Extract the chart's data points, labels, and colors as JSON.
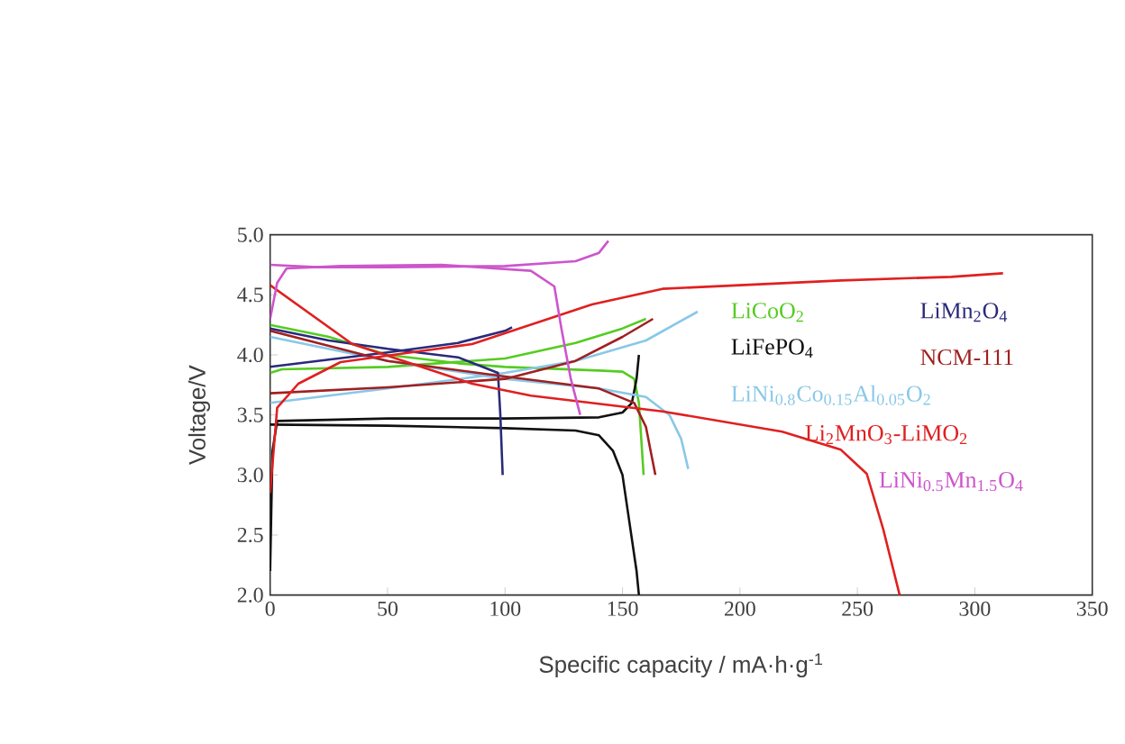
{
  "chart_data": {
    "type": "line",
    "xlabel": "Specific capacity / mA·h·g$^{-1}$",
    "ylabel": "Voltage/V",
    "xlim": [
      0,
      350
    ],
    "ylim": [
      2,
      5
    ],
    "xticks": [
      0,
      50,
      100,
      150,
      200,
      250,
      300,
      350
    ],
    "yticks": [
      {
        "value": 2,
        "label": "2.0"
      },
      {
        "value": 2.5,
        "label": "2.5"
      },
      {
        "value": 3,
        "label": "3.0"
      },
      {
        "value": 3.5,
        "label": "3.5"
      },
      {
        "value": 4,
        "label": "4.0"
      },
      {
        "value": 4.5,
        "label": "4.5"
      },
      {
        "value": 5,
        "label": "5.0"
      }
    ],
    "series": [
      {
        "name": "LiCoO$_{2}$",
        "color": "#55cc22",
        "x": [
          0,
          5,
          50,
          100,
          130,
          150,
          160
        ],
        "values": [
          3.85,
          3.88,
          3.9,
          3.97,
          4.1,
          4.22,
          4.3
        ]
      },
      {
        "color": "#55cc22",
        "x": [
          0,
          25,
          50,
          80,
          100,
          140,
          150,
          155,
          157,
          158,
          159
        ],
        "values": [
          4.25,
          4.15,
          4.0,
          3.93,
          3.9,
          3.87,
          3.86,
          3.8,
          3.6,
          3.3,
          3.0
        ]
      },
      {
        "name": "LiFePO$_{4}$",
        "color": "#111111",
        "x": [
          0,
          1,
          3,
          50,
          100,
          140,
          150,
          154,
          156,
          157
        ],
        "values": [
          2.2,
          3.2,
          3.45,
          3.47,
          3.47,
          3.48,
          3.52,
          3.6,
          3.8,
          4.0
        ]
      },
      {
        "color": "#111111",
        "x": [
          0,
          50,
          100,
          130,
          140,
          146,
          150,
          153,
          156,
          157
        ],
        "values": [
          3.42,
          3.41,
          3.39,
          3.37,
          3.33,
          3.2,
          3.0,
          2.6,
          2.2,
          2.0
        ]
      },
      {
        "name": "LiNi$_{0.8}$Co$_{0.15}$Al$_{0.05}$O$_{2}$",
        "color": "#88c8e8",
        "x": [
          0,
          50,
          100,
          130,
          160,
          182
        ],
        "values": [
          3.6,
          3.72,
          3.85,
          3.95,
          4.12,
          4.36
        ]
      },
      {
        "color": "#88c8e8",
        "x": [
          0,
          50,
          100,
          140,
          160,
          170,
          175,
          178
        ],
        "values": [
          4.15,
          3.95,
          3.8,
          3.72,
          3.65,
          3.5,
          3.3,
          3.05
        ]
      },
      {
        "name": "LiMn$_{2}$O$_{4}$",
        "color": "#2a2a7a",
        "x": [
          0,
          50,
          80,
          100,
          103
        ],
        "values": [
          3.9,
          4.02,
          4.1,
          4.2,
          4.23
        ]
      },
      {
        "color": "#2a2a7a",
        "x": [
          0,
          25,
          50,
          80,
          97,
          98,
          99
        ],
        "values": [
          4.22,
          4.12,
          4.05,
          3.98,
          3.85,
          3.5,
          3.0
        ]
      },
      {
        "name": "NCM-111",
        "color": "#a02020",
        "x": [
          0,
          50,
          100,
          130,
          150,
          163
        ],
        "values": [
          3.68,
          3.73,
          3.8,
          3.95,
          4.15,
          4.3
        ]
      },
      {
        "color": "#a02020",
        "x": [
          0,
          50,
          100,
          140,
          155,
          160,
          162,
          164
        ],
        "values": [
          4.2,
          3.95,
          3.82,
          3.72,
          3.6,
          3.4,
          3.2,
          3.0
        ]
      },
      {
        "name": "Li$_{2}$MnO$_{3}$-LiMO$_{2}$",
        "color": "#e02020",
        "x": [
          0,
          3,
          12,
          30,
          60,
          86,
          106,
          137,
          167,
          200,
          243,
          290,
          312
        ],
        "values": [
          2.85,
          3.56,
          3.76,
          3.94,
          4.02,
          4.09,
          4.22,
          4.42,
          4.55,
          4.58,
          4.62,
          4.65,
          4.68
        ]
      },
      {
        "color": "#e02020",
        "x": [
          0,
          35,
          86,
          111,
          167,
          218,
          243,
          254,
          261,
          268
        ],
        "values": [
          4.58,
          4.09,
          3.76,
          3.66,
          3.53,
          3.36,
          3.21,
          3.01,
          2.55,
          2.0
        ]
      },
      {
        "name": "LiNi$_{0.5}$Mn$_{1.5}$O$_{4}$",
        "color": "#cc55cc",
        "x": [
          0,
          20,
          50,
          100,
          130,
          140,
          144
        ],
        "values": [
          4.75,
          4.73,
          4.73,
          4.74,
          4.78,
          4.85,
          4.95
        ]
      },
      {
        "color": "#cc55cc",
        "x": [
          0,
          3,
          7,
          30,
          73,
          111,
          121,
          124,
          128,
          132
        ],
        "values": [
          4.3,
          4.6,
          4.72,
          4.74,
          4.75,
          4.7,
          4.57,
          4.22,
          3.8,
          3.5
        ]
      }
    ]
  }
}
